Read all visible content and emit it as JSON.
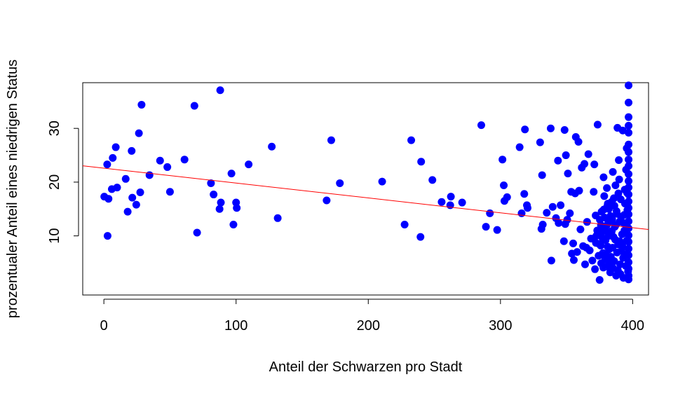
{
  "chart_data": {
    "type": "scatter",
    "xlabel": "Anteil der Schwarzen pro Stadt",
    "ylabel": "prozentualer Anteil eines niedrigen Status",
    "xlim": [
      -16,
      412
    ],
    "ylim": [
      -1,
      38.5
    ],
    "xticks": [
      0,
      100,
      200,
      300,
      400
    ],
    "yticks": [
      10,
      20,
      30
    ],
    "grid": false,
    "legend": "none",
    "point_color": "#0000ff",
    "line_color": "#ff0000",
    "regression_line": {
      "intercept": 22.6,
      "slope": -0.0277
    },
    "points": [
      [
        0.3,
        17.3
      ],
      [
        2.5,
        23.3
      ],
      [
        2.8,
        10.0
      ],
      [
        3.5,
        16.9
      ],
      [
        6.7,
        24.5
      ],
      [
        6.0,
        18.7
      ],
      [
        9.0,
        26.5
      ],
      [
        10.0,
        19.0
      ],
      [
        16.5,
        20.6
      ],
      [
        18.0,
        14.5
      ],
      [
        21.0,
        25.8
      ],
      [
        21.5,
        17.1
      ],
      [
        24.5,
        15.8
      ],
      [
        26.5,
        29.1
      ],
      [
        27.5,
        18.1
      ],
      [
        28.5,
        34.4
      ],
      [
        34.5,
        21.3
      ],
      [
        42.5,
        24.0
      ],
      [
        48.0,
        22.8
      ],
      [
        50.0,
        18.2
      ],
      [
        61.0,
        24.2
      ],
      [
        68.5,
        34.2
      ],
      [
        70.5,
        10.6
      ],
      [
        81.0,
        19.8
      ],
      [
        83.0,
        17.7
      ],
      [
        87.5,
        15.0
      ],
      [
        88.5,
        16.2
      ],
      [
        88.0,
        37.1
      ],
      [
        96.5,
        21.6
      ],
      [
        98.0,
        12.1
      ],
      [
        100.0,
        16.2
      ],
      [
        100.5,
        15.2
      ],
      [
        109.5,
        23.3
      ],
      [
        127.0,
        26.6
      ],
      [
        131.5,
        13.3
      ],
      [
        168.5,
        16.6
      ],
      [
        172.0,
        27.8
      ],
      [
        178.5,
        19.8
      ],
      [
        210.5,
        20.1
      ],
      [
        227.5,
        12.1
      ],
      [
        232.5,
        27.8
      ],
      [
        239.5,
        9.8
      ],
      [
        240.0,
        23.8
      ],
      [
        248.5,
        20.4
      ],
      [
        255.5,
        16.3
      ],
      [
        262.0,
        15.7
      ],
      [
        262.5,
        17.3
      ],
      [
        271.0,
        16.2
      ],
      [
        285.5,
        30.6
      ],
      [
        289.0,
        11.7
      ],
      [
        292.0,
        14.2
      ],
      [
        297.5,
        11.1
      ],
      [
        301.5,
        24.2
      ],
      [
        302.5,
        19.4
      ],
      [
        303.0,
        16.5
      ],
      [
        305.0,
        17.2
      ],
      [
        314.5,
        26.5
      ],
      [
        316.0,
        14.2
      ],
      [
        318.0,
        17.8
      ],
      [
        318.5,
        29.8
      ],
      [
        320.0,
        15.7
      ],
      [
        320.5,
        15.2
      ],
      [
        330.0,
        27.4
      ],
      [
        331.0,
        11.3
      ],
      [
        331.5,
        21.3
      ],
      [
        332.0,
        12.1
      ],
      [
        335.0,
        14.3
      ],
      [
        338.0,
        30.0
      ],
      [
        338.5,
        5.4
      ],
      [
        339.5,
        15.4
      ],
      [
        342.0,
        13.3
      ],
      [
        343.5,
        24.0
      ],
      [
        344.0,
        12.4
      ],
      [
        345.5,
        15.7
      ],
      [
        348.0,
        9.0
      ],
      [
        348.5,
        29.7
      ],
      [
        349.0,
        12.2
      ],
      [
        349.5,
        25.0
      ],
      [
        350.5,
        13.0
      ],
      [
        351.0,
        21.6
      ],
      [
        352.5,
        14.2
      ],
      [
        353.5,
        18.2
      ],
      [
        354.0,
        6.7
      ],
      [
        355.0,
        8.6
      ],
      [
        355.5,
        5.5
      ],
      [
        356.5,
        17.9
      ],
      [
        357.0,
        28.4
      ],
      [
        358.0,
        7.0
      ],
      [
        359.0,
        27.5
      ],
      [
        359.5,
        18.4
      ],
      [
        360.5,
        11.2
      ],
      [
        361.5,
        22.7
      ],
      [
        362.5,
        8.1
      ],
      [
        363.5,
        23.4
      ],
      [
        364.0,
        4.7
      ],
      [
        365.0,
        7.8
      ],
      [
        365.5,
        12.6
      ],
      [
        366.5,
        25.2
      ],
      [
        367.5,
        7.3
      ],
      [
        368.5,
        9.5
      ],
      [
        369.5,
        5.4
      ],
      [
        370.5,
        18.2
      ],
      [
        371.0,
        23.3
      ],
      [
        371.5,
        3.8
      ],
      [
        372.0,
        13.8
      ],
      [
        372.5,
        10.0
      ],
      [
        373.5,
        30.7
      ],
      [
        374.5,
        8.5
      ],
      [
        375.0,
        1.8
      ],
      [
        376.0,
        12.0
      ],
      [
        376.5,
        14.5
      ],
      [
        377.5,
        6.8
      ],
      [
        378.0,
        20.9
      ],
      [
        378.5,
        17.4
      ],
      [
        379.0,
        11.0
      ],
      [
        379.5,
        9.2
      ],
      [
        380.0,
        4.3
      ],
      [
        380.5,
        18.9
      ],
      [
        381.0,
        8.0
      ],
      [
        381.5,
        12.4
      ],
      [
        382.0,
        15.0
      ],
      [
        382.5,
        10.5
      ],
      [
        383.0,
        3.2
      ],
      [
        383.5,
        6.1
      ],
      [
        384.0,
        16.3
      ],
      [
        384.5,
        13.1
      ],
      [
        385.0,
        21.9
      ],
      [
        385.5,
        9.8
      ],
      [
        386.0,
        5.3
      ],
      [
        386.5,
        11.7
      ],
      [
        387.0,
        19.4
      ],
      [
        387.5,
        2.6
      ],
      [
        388.0,
        14.1
      ],
      [
        388.5,
        30.1
      ],
      [
        389.0,
        8.4
      ],
      [
        389.5,
        24.1
      ],
      [
        390.0,
        12.6
      ],
      [
        390.5,
        4.7
      ],
      [
        391.0,
        16.8
      ],
      [
        391.5,
        7.2
      ],
      [
        392.0,
        10.3
      ],
      [
        392.5,
        29.6
      ],
      [
        393.0,
        2.2
      ],
      [
        393.5,
        13.9
      ],
      [
        394.0,
        18.6
      ],
      [
        394.5,
        6.5
      ],
      [
        395.0,
        22.3
      ],
      [
        395.5,
        9.1
      ],
      [
        396.0,
        14.8
      ],
      [
        396.5,
        3.4
      ],
      [
        396.9,
        38.0
      ],
      [
        396.9,
        34.8
      ],
      [
        396.9,
        32.1
      ],
      [
        396.9,
        30.5
      ],
      [
        396.9,
        29.2
      ],
      [
        396.9,
        27.0
      ],
      [
        396.9,
        25.6
      ],
      [
        396.9,
        24.2
      ],
      [
        396.9,
        23.0
      ],
      [
        396.9,
        21.5
      ],
      [
        396.9,
        20.2
      ],
      [
        396.9,
        19.0
      ],
      [
        396.9,
        17.7
      ],
      [
        396.9,
        16.4
      ],
      [
        396.9,
        15.2
      ],
      [
        396.9,
        14.0
      ],
      [
        396.9,
        12.7
      ],
      [
        396.9,
        11.4
      ],
      [
        396.9,
        10.1
      ],
      [
        396.9,
        8.9
      ],
      [
        396.9,
        7.6
      ],
      [
        396.9,
        6.4
      ],
      [
        396.9,
        5.1
      ],
      [
        396.9,
        3.9
      ],
      [
        396.9,
        2.6
      ],
      [
        396.9,
        1.9
      ],
      [
        395.5,
        26.3
      ],
      [
        394.2,
        16.0
      ],
      [
        393.8,
        11.0
      ],
      [
        392.8,
        5.9
      ],
      [
        391.2,
        13.5
      ],
      [
        390.2,
        9.0
      ],
      [
        389.2,
        17.9
      ],
      [
        388.2,
        6.9
      ],
      [
        387.2,
        12.0
      ],
      [
        386.2,
        15.6
      ],
      [
        385.2,
        4.0
      ],
      [
        384.2,
        10.9
      ],
      [
        383.2,
        13.7
      ],
      [
        382.2,
        7.5
      ],
      [
        381.2,
        16.0
      ],
      [
        380.2,
        11.9
      ],
      [
        379.2,
        5.7
      ],
      [
        378.2,
        14.9
      ],
      [
        377.2,
        9.6
      ],
      [
        376.2,
        4.9
      ],
      [
        375.2,
        13.0
      ],
      [
        374.2,
        6.3
      ],
      [
        373.2,
        11.0
      ],
      [
        372.2,
        8.7
      ],
      [
        390.8,
        2.9
      ],
      [
        392.2,
        8.1
      ],
      [
        393.2,
        12.4
      ],
      [
        394.8,
        4.4
      ],
      [
        395.8,
        18.0
      ],
      [
        389.8,
        20.5
      ],
      [
        388.8,
        3.6
      ],
      [
        387.8,
        14.6
      ],
      [
        386.8,
        9.3
      ],
      [
        385.8,
        17.0
      ],
      [
        384.8,
        7.8
      ],
      [
        383.8,
        12.9
      ],
      [
        382.8,
        5.0
      ],
      [
        381.8,
        10.0
      ],
      [
        380.8,
        15.5
      ],
      [
        379.8,
        6.6
      ],
      [
        378.8,
        13.4
      ],
      [
        377.8,
        4.1
      ],
      [
        376.8,
        10.7
      ],
      [
        375.8,
        8.2
      ]
    ]
  }
}
